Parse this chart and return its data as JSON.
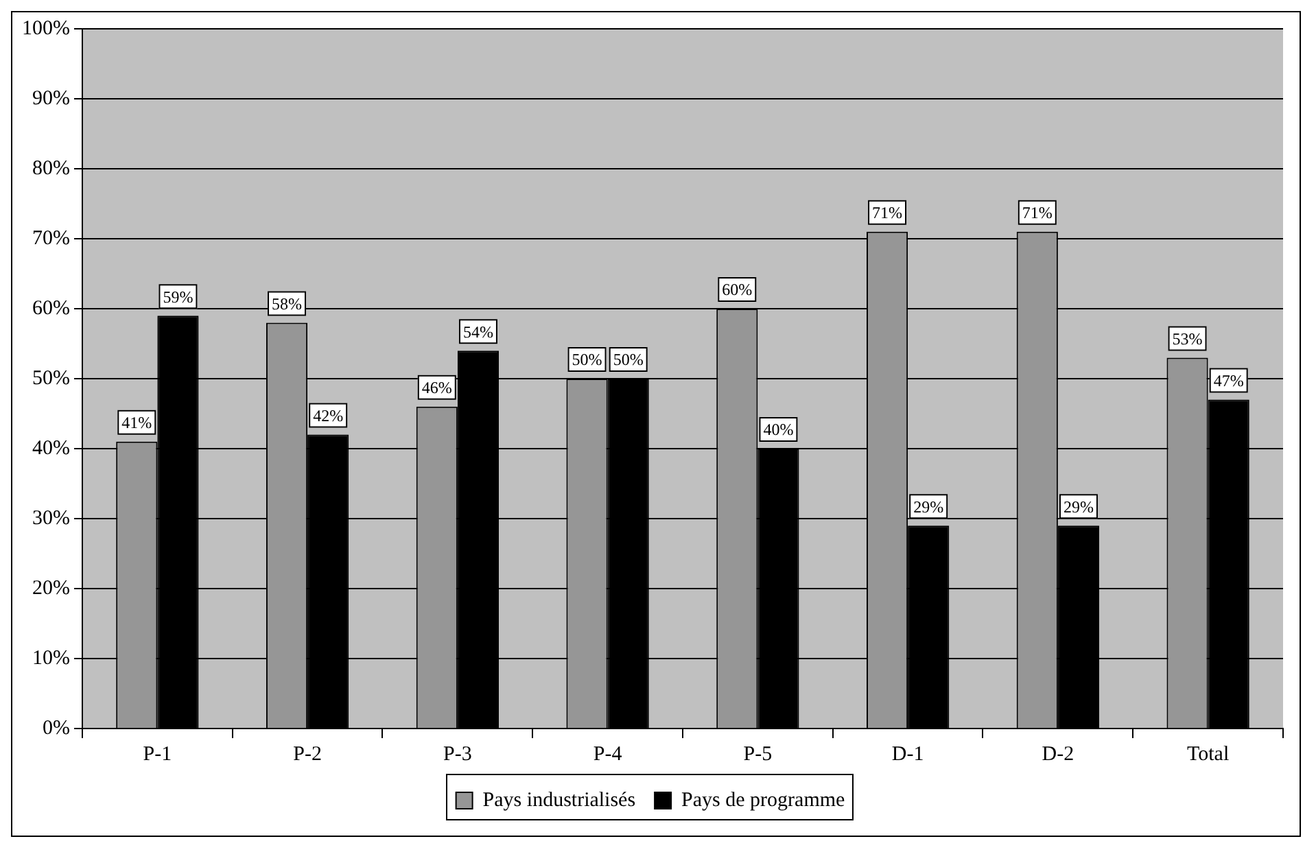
{
  "chart_data": {
    "type": "bar",
    "categories": [
      "P-1",
      "P-2",
      "P-3",
      "P-4",
      "P-5",
      "D-1",
      "D-2",
      "Total"
    ],
    "series": [
      {
        "name": "Pays industrialisés",
        "color": "#969696",
        "values": [
          41,
          58,
          46,
          50,
          60,
          71,
          71,
          53
        ],
        "value_labels": [
          "41%",
          "58%",
          "46%",
          "50%",
          "60%",
          "71%",
          "71%",
          "53%"
        ]
      },
      {
        "name": "Pays de programme",
        "color": "#000000",
        "values": [
          59,
          42,
          54,
          50,
          40,
          29,
          29,
          47
        ],
        "value_labels": [
          "59%",
          "42%",
          "54%",
          "50%",
          "40%",
          "29%",
          "29%",
          "47%"
        ]
      }
    ],
    "ylim": [
      0,
      100
    ],
    "yticks": [
      {
        "value": 0,
        "label": "0%"
      },
      {
        "value": 10,
        "label": "10%"
      },
      {
        "value": 20,
        "label": "20%"
      },
      {
        "value": 30,
        "label": "30%"
      },
      {
        "value": 40,
        "label": "40%"
      },
      {
        "value": 50,
        "label": "50%"
      },
      {
        "value": 60,
        "label": "60%"
      },
      {
        "value": 70,
        "label": "70%"
      },
      {
        "value": 80,
        "label": "80%"
      },
      {
        "value": 90,
        "label": "90%"
      },
      {
        "value": 100,
        "label": "100%"
      }
    ],
    "grid": "y",
    "legend": "bottom"
  }
}
